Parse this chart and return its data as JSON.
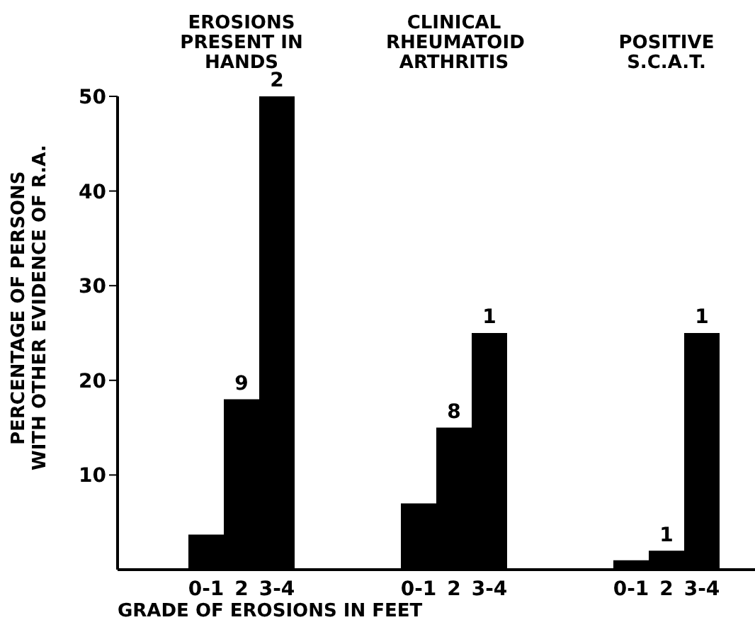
{
  "chart_data": {
    "type": "bar",
    "xlabel": "GRADE OF EROSIONS IN FEET",
    "ylabel": "PERCENTAGE OF PERSONS WITH OTHER EVIDENCE OF R.A.",
    "annotations": [
      "EROSIONS PRESENT IN HANDS",
      "CLINICAL RHEUMATOID ARTHRITIS",
      "POSITIVE S.C.A.T.",
      "9",
      "2",
      "8",
      "1",
      "1",
      "1"
    ],
    "categories": [
      null,
      null,
      "0-1",
      "2",
      "3-4",
      null,
      null,
      null,
      "0-1",
      "2",
      "3-4",
      null,
      null,
      null,
      "0-1",
      "2",
      "3-4",
      null
    ],
    "values": [
      null,
      null,
      3.7,
      18,
      50,
      null,
      null,
      null,
      7,
      15,
      25,
      null,
      null,
      null,
      1,
      2,
      25,
      null
    ],
    "color": "#000000",
    "ylim": [
      0,
      50
    ],
    "yticks": [
      10,
      20,
      30,
      40,
      50
    ]
  }
}
